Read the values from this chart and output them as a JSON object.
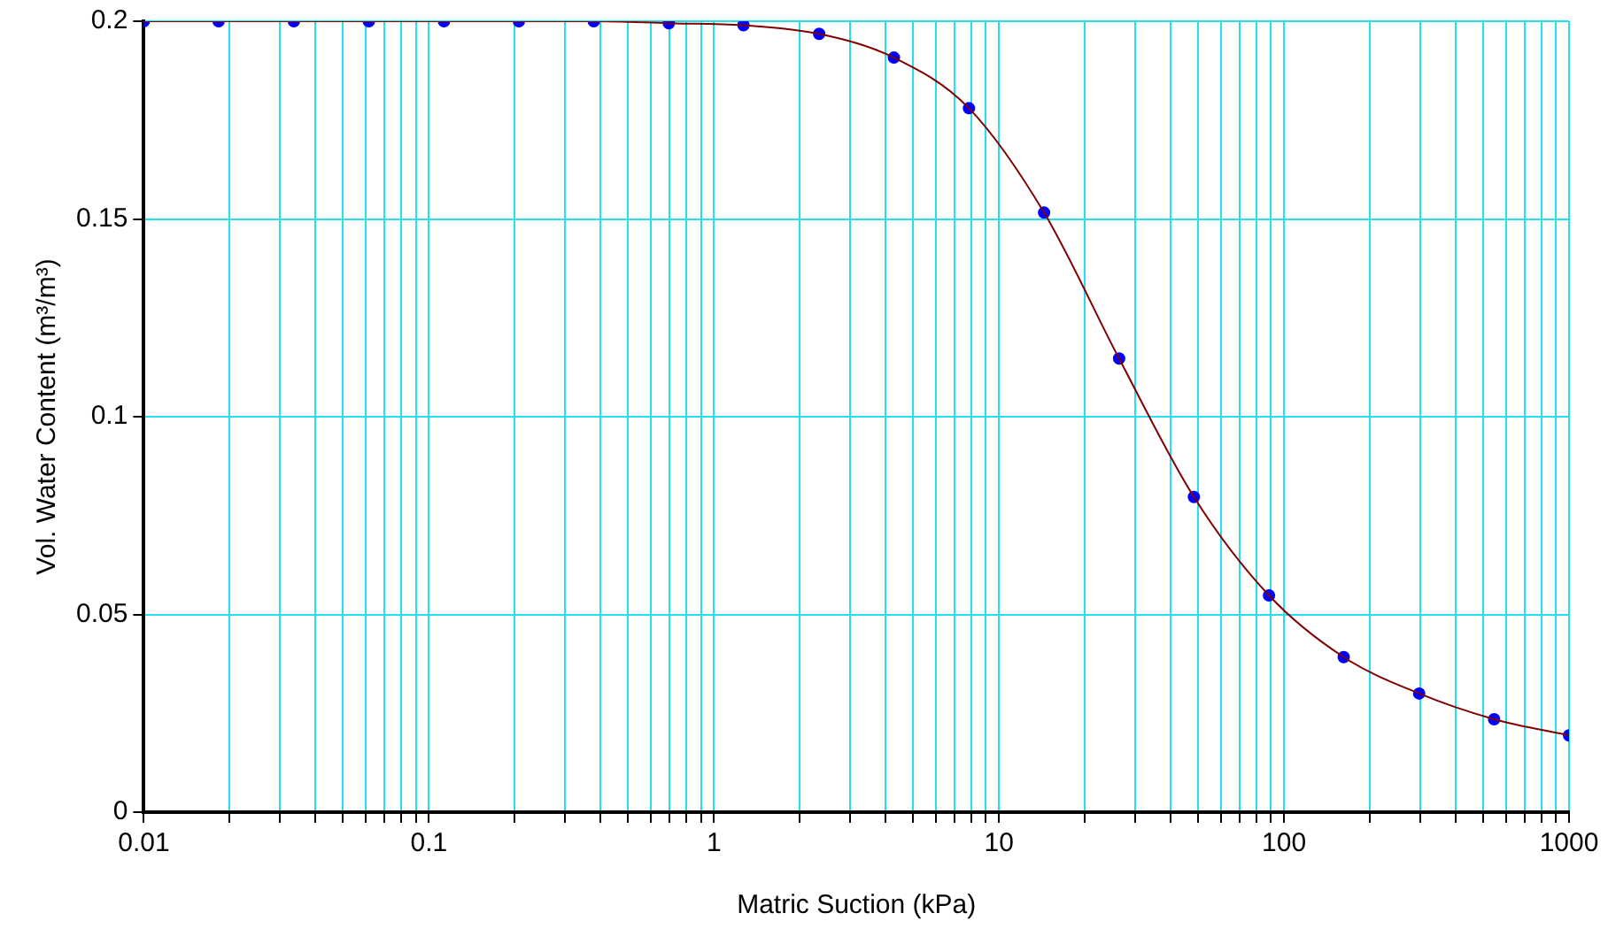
{
  "chart_data": {
    "type": "scatter",
    "xlabel": "Matric Suction (kPa)",
    "ylabel": "Vol. Water Content (m³/m³)",
    "log": "x",
    "grid": true,
    "legend": false,
    "xlim": [
      0.01,
      1000
    ],
    "ylim": [
      0,
      0.2
    ],
    "xticks": [
      0.01,
      {
        "value": 0.02,
        "label": null
      },
      {
        "value": 0.03,
        "label": null
      },
      {
        "value": 0.04,
        "label": null
      },
      {
        "value": 0.05,
        "label": null
      },
      {
        "value": 0.06,
        "label": null
      },
      {
        "value": 0.07,
        "label": null
      },
      {
        "value": 0.08,
        "label": null
      },
      {
        "value": 0.09,
        "label": null
      },
      0.1,
      {
        "value": 0.2,
        "label": null
      },
      {
        "value": 0.3,
        "label": null
      },
      {
        "value": 0.4,
        "label": null
      },
      {
        "value": 0.5,
        "label": null
      },
      {
        "value": 0.6,
        "label": null
      },
      {
        "value": 0.7,
        "label": null
      },
      {
        "value": 0.8,
        "label": null
      },
      {
        "value": 0.9,
        "label": null
      },
      1,
      {
        "value": 2,
        "label": null
      },
      {
        "value": 3,
        "label": null
      },
      {
        "value": 4,
        "label": null
      },
      {
        "value": 5,
        "label": null
      },
      {
        "value": 6,
        "label": null
      },
      {
        "value": 7,
        "label": null
      },
      {
        "value": 8,
        "label": null
      },
      {
        "value": 9,
        "label": null
      },
      10,
      {
        "value": 20,
        "label": null
      },
      {
        "value": 30,
        "label": null
      },
      {
        "value": 40,
        "label": null
      },
      {
        "value": 50,
        "label": null
      },
      {
        "value": 60,
        "label": null
      },
      {
        "value": 70,
        "label": null
      },
      {
        "value": 80,
        "label": null
      },
      {
        "value": 90,
        "label": null
      },
      100,
      {
        "value": 200,
        "label": null
      },
      {
        "value": 300,
        "label": null
      },
      {
        "value": 400,
        "label": null
      },
      {
        "value": 500,
        "label": null
      },
      {
        "value": 600,
        "label": null
      },
      {
        "value": 700,
        "label": null
      },
      {
        "value": 800,
        "label": null
      },
      {
        "value": 900,
        "label": null
      },
      1000
    ],
    "yticks": [
      0,
      0.05,
      0.1,
      0.15,
      0.2
    ],
    "series": [
      {
        "type": "line",
        "color": "#800000",
        "marker": "none",
        "x": [
          0.01,
          0.0183,
          0.0336,
          0.0616,
          0.113,
          0.207,
          0.379,
          0.695,
          1.27,
          2.34,
          4.28,
          7.85,
          14.4,
          26.4,
          48.3,
          88.6,
          162,
          298,
          546,
          1000
        ],
        "values": [
          0.2,
          0.2,
          0.2,
          0.2,
          0.2,
          0.2,
          0.2,
          0.1995,
          0.199,
          0.1968,
          0.1908,
          0.178,
          0.1516,
          0.1147,
          0.0797,
          0.0548,
          0.0392,
          0.03,
          0.0235,
          0.0194
        ]
      },
      {
        "color": "#0000ff",
        "marker": "circle",
        "x": [
          0.01,
          0.0183,
          0.0336,
          0.0616,
          0.113,
          0.207,
          0.379,
          0.695,
          1.27,
          2.34,
          4.28,
          7.85,
          14.4,
          26.4,
          48.3,
          88.6,
          162,
          298,
          546,
          1000
        ],
        "values": [
          0.2,
          0.2,
          0.2,
          0.2,
          0.2,
          0.2,
          0.2,
          0.1995,
          0.199,
          0.1968,
          0.1908,
          0.178,
          0.1516,
          0.1147,
          0.0797,
          0.0548,
          0.0392,
          0.03,
          0.0235,
          0.0194
        ]
      }
    ]
  }
}
